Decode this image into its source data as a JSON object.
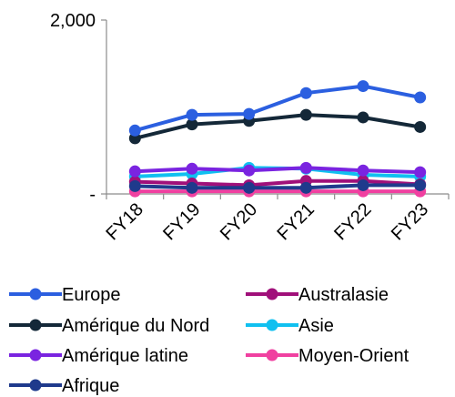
{
  "chart_data": {
    "type": "line",
    "title": "",
    "xlabel": "",
    "ylabel": "",
    "categories": [
      "FY18",
      "FY19",
      "FY20",
      "FY21",
      "FY22",
      "FY23"
    ],
    "y_ticks": [
      "-",
      "2,000"
    ],
    "ylim": [
      0,
      2000
    ],
    "grid": false,
    "legend_position": "bottom",
    "series": [
      {
        "name": "Europe",
        "color": "#2b5fe0",
        "values": [
          730,
          910,
          920,
          1160,
          1240,
          1110
        ]
      },
      {
        "name": "Amérique du Nord",
        "color": "#142838",
        "values": [
          640,
          800,
          840,
          910,
          880,
          770
        ]
      },
      {
        "name": "Amérique latine",
        "color": "#7a24e0",
        "values": [
          260,
          290,
          270,
          300,
          270,
          250
        ]
      },
      {
        "name": "Afrique",
        "color": "#1f3a8c",
        "values": [
          90,
          70,
          70,
          70,
          100,
          100
        ]
      },
      {
        "name": "Australasie",
        "color": "#a0107a",
        "values": [
          140,
          120,
          100,
          150,
          150,
          110
        ]
      },
      {
        "name": "Asie",
        "color": "#10c0f0",
        "values": [
          200,
          230,
          300,
          290,
          220,
          200
        ]
      },
      {
        "name": "Moyen-Orient",
        "color": "#f040a0",
        "values": [
          30,
          30,
          30,
          30,
          30,
          30
        ]
      }
    ]
  }
}
